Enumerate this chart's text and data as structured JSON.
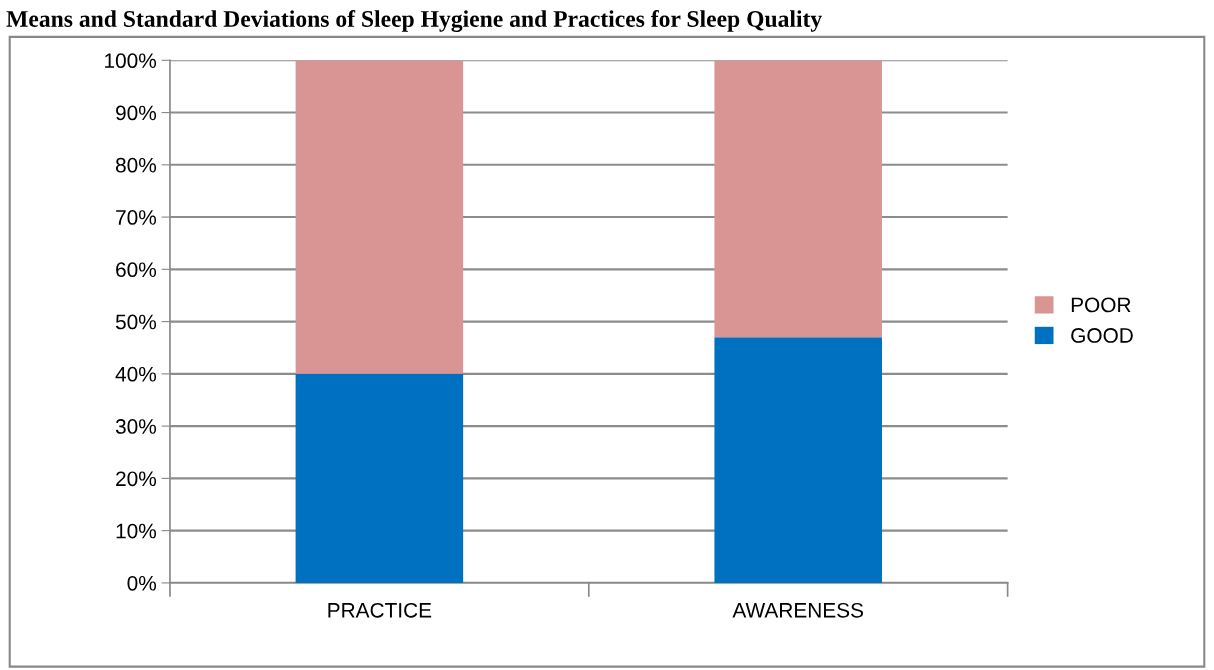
{
  "chart_data": {
    "type": "bar",
    "title": "Means and Standard Deviations of Sleep Hygiene and Practices for Sleep Quality",
    "categories": [
      "PRACTICE",
      "AWARENESS"
    ],
    "series": [
      {
        "name": "GOOD",
        "color": "#0070c0",
        "values": [
          40,
          47
        ]
      },
      {
        "name": "POOR",
        "color": "#d99594",
        "values": [
          60,
          53
        ]
      }
    ],
    "stacked": true,
    "ylim": [
      0,
      100
    ],
    "yticks": [
      {
        "value": 0,
        "label": "0%"
      },
      {
        "value": 10,
        "label": "10%"
      },
      {
        "value": 20,
        "label": "20%"
      },
      {
        "value": 30,
        "label": "30%"
      },
      {
        "value": 40,
        "label": "40%"
      },
      {
        "value": 50,
        "label": "50%"
      },
      {
        "value": 60,
        "label": "60%"
      },
      {
        "value": 70,
        "label": "70%"
      },
      {
        "value": 80,
        "label": "80%"
      },
      {
        "value": 90,
        "label": "90%"
      },
      {
        "value": 100,
        "label": "100%"
      }
    ],
    "grid": "y",
    "legend": "right"
  }
}
